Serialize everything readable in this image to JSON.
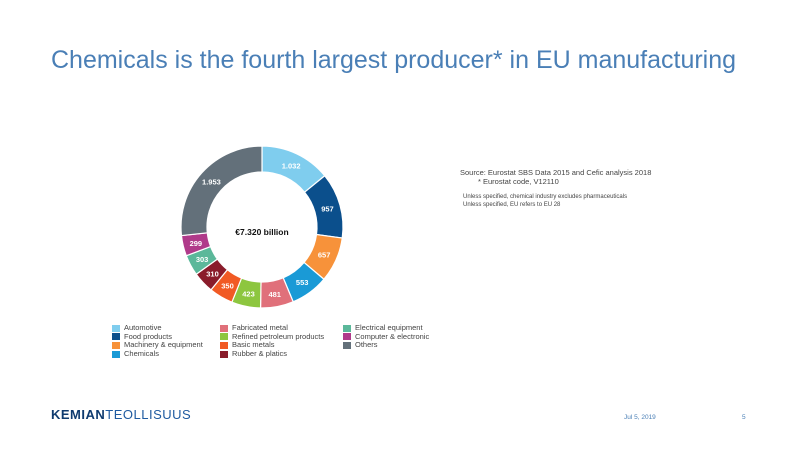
{
  "slide": {
    "title": "Chemicals is the fourth largest producer* in EU manufacturing",
    "date": "Jul 5, 2019",
    "page": "5"
  },
  "logo": {
    "part1": "KEMIAN",
    "part2": "TEOLLISUUS"
  },
  "notes": {
    "source": "Source: Eurostat SBS Data 2015 and Cefic analysis 2018",
    "code": "* Eurostat code, V12110",
    "note1": "Unless specified, chemical industry excludes pharmaceuticals",
    "note2": "Unless specified, EU refers to EU 28"
  },
  "chart_data": {
    "type": "pie",
    "title": "",
    "center_label": "€7.320 billion",
    "categories": [
      "Automotive",
      "Food products",
      "Machinery & equipment",
      "Chemicals",
      "Fabricated metal",
      "Refined petroleum products",
      "Basic metals",
      "Rubber & platics",
      "Electrical equipment",
      "Computer & electronic",
      "Others"
    ],
    "values": [
      1032,
      957,
      657,
      553,
      481,
      423,
      350,
      310,
      303,
      299,
      1953
    ],
    "value_labels": [
      "1.032",
      "957",
      "657",
      "553",
      "481",
      "423",
      "350",
      "310",
      "303",
      "299",
      "1.953"
    ],
    "colors": [
      "#7fcdee",
      "#0b4f8c",
      "#f7923a",
      "#1a9ad6",
      "#e0707a",
      "#8dc63f",
      "#f15a24",
      "#8a1c2b",
      "#5bb89a",
      "#b03a8a",
      "#63707a"
    ],
    "legend": "bottom"
  }
}
